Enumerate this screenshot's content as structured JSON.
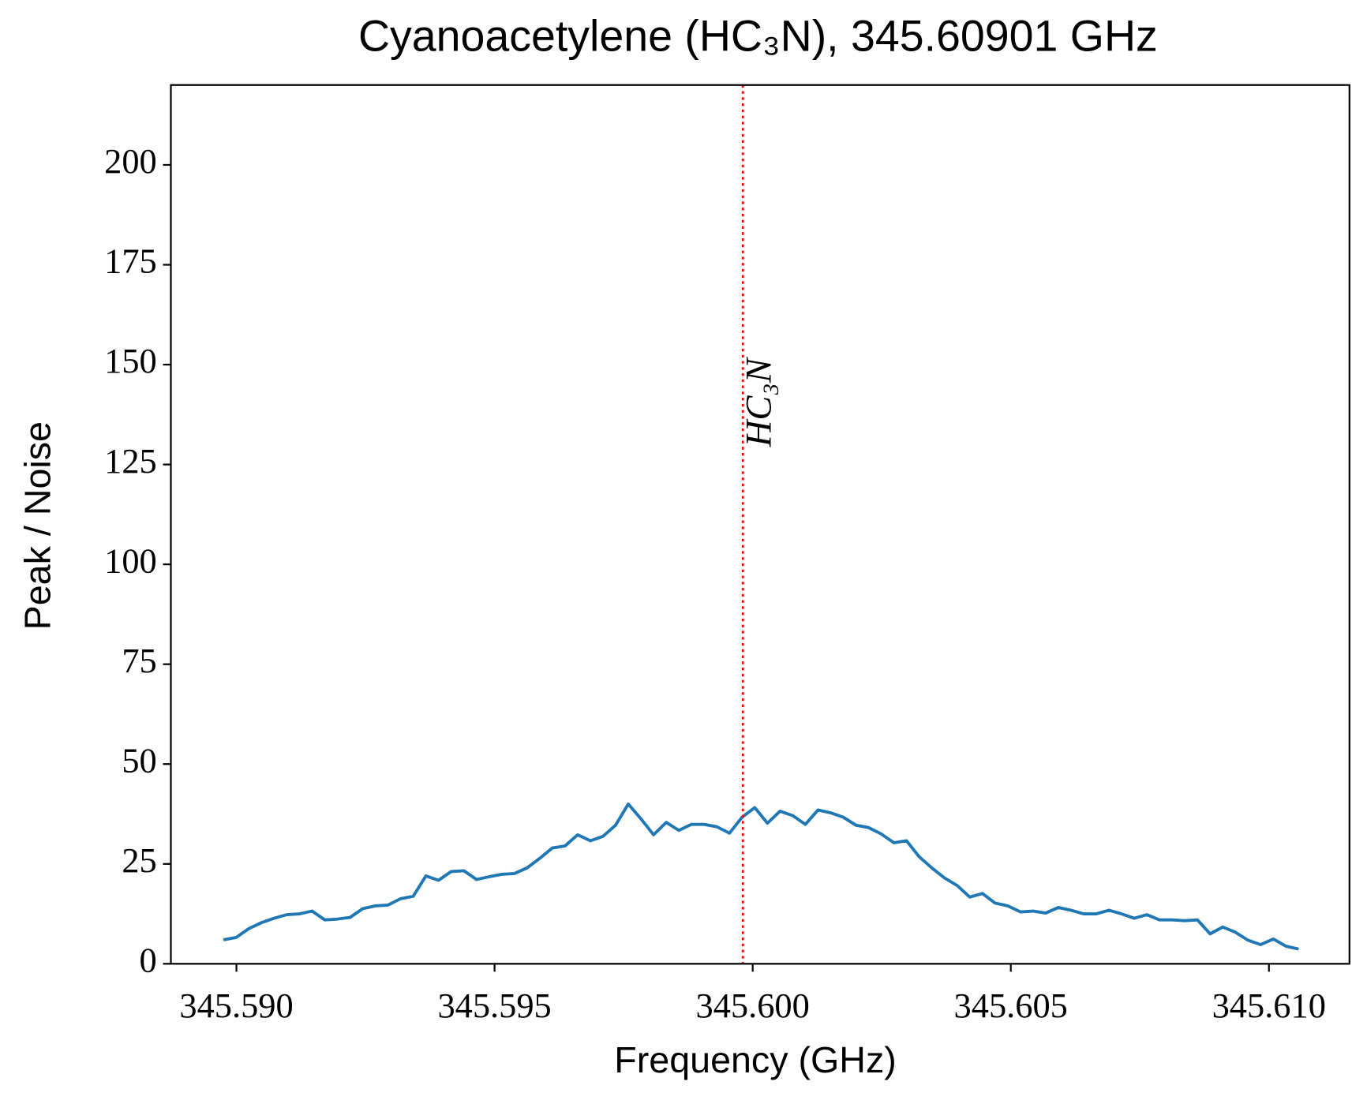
{
  "chart_data": {
    "type": "line",
    "title": "Cyanoacetylene (HC₃N), 345.60901 GHz",
    "xlabel": "Frequency (GHz)",
    "ylabel": "Peak / Noise",
    "xlim": [
      345.58873,
      345.61156
    ],
    "ylim": [
      0,
      220
    ],
    "xticks": [
      {
        "value": 345.59,
        "label": "345.590"
      },
      345.595,
      {
        "value": 345.6,
        "label": "345.600"
      },
      345.605,
      {
        "value": 345.61,
        "label": "345.610"
      }
    ],
    "yticks": [
      0,
      25,
      50,
      75,
      100,
      125,
      150,
      175,
      200
    ],
    "grid": false,
    "annotations": [
      {
        "text": "HC₃N",
        "x": 345.59981,
        "color": "#ff0000"
      }
    ],
    "x": [
      345.58975,
      345.589995,
      345.59024,
      345.590485,
      345.59073,
      345.590975,
      345.59122,
      345.591465,
      345.59171,
      345.591955,
      345.5922,
      345.592445,
      345.59269,
      345.592935,
      345.59318,
      345.593425,
      345.59367,
      345.593915,
      345.59416,
      345.594405,
      345.59465,
      345.594895,
      345.59514,
      345.595385,
      345.59563,
      345.595875,
      345.59612,
      345.596365,
      345.59661,
      345.596855,
      345.5971,
      345.597345,
      345.59759,
      345.597835,
      345.59808,
      345.598325,
      345.59857,
      345.598815,
      345.59906,
      345.599305,
      345.59955,
      345.599795,
      345.60004,
      345.600285,
      345.60053,
      345.600775,
      345.60102,
      345.601265,
      345.60151,
      345.601755,
      345.602,
      345.602245,
      345.60249,
      345.602735,
      345.60298,
      345.603225,
      345.60347,
      345.603715,
      345.60396,
      345.604205,
      345.60445,
      345.604695,
      345.60494,
      345.605185,
      345.60543,
      345.605675,
      345.60592,
      345.606165,
      345.60641,
      345.606655,
      345.6069,
      345.607145,
      345.60739,
      345.607635,
      345.60788,
      345.608125,
      345.60837,
      345.608615,
      345.60886,
      345.609105,
      345.60935,
      345.609595,
      345.60984,
      345.610085,
      345.61033,
      345.610575
    ],
    "series": [
      {
        "name": "HC₃N",
        "color": "#1f77b4",
        "values": [
          6,
          6.6,
          8.8,
          10.3,
          11.4,
          12.3,
          12.5,
          13.2,
          11,
          11.2,
          11.6,
          13.8,
          14.5,
          14.7,
          16.3,
          16.9,
          22,
          20.9,
          23.1,
          23.3,
          21.1,
          21.8,
          22.4,
          22.6,
          24,
          26.4,
          29,
          29.5,
          32.3,
          30.8,
          31.9,
          34.7,
          40,
          36.3,
          32.3,
          35.4,
          33.4,
          34.9,
          34.9,
          34.3,
          32.7,
          36.7,
          39.1,
          35.2,
          38.2,
          37.1,
          34.9,
          38.5,
          37.8,
          36.7,
          34.7,
          34.1,
          32.5,
          30.3,
          30.8,
          26.8,
          24,
          21.5,
          19.6,
          16.7,
          17.6,
          15.2,
          14.5,
          13,
          13.2,
          12.7,
          14.1,
          13.4,
          12.5,
          12.5,
          13.4,
          12.5,
          11.4,
          12.3,
          11,
          11,
          10.8,
          11,
          7.5,
          9.2,
          7.9,
          5.9,
          4.8,
          6.2,
          4.4,
          3.7
        ]
      }
    ]
  }
}
